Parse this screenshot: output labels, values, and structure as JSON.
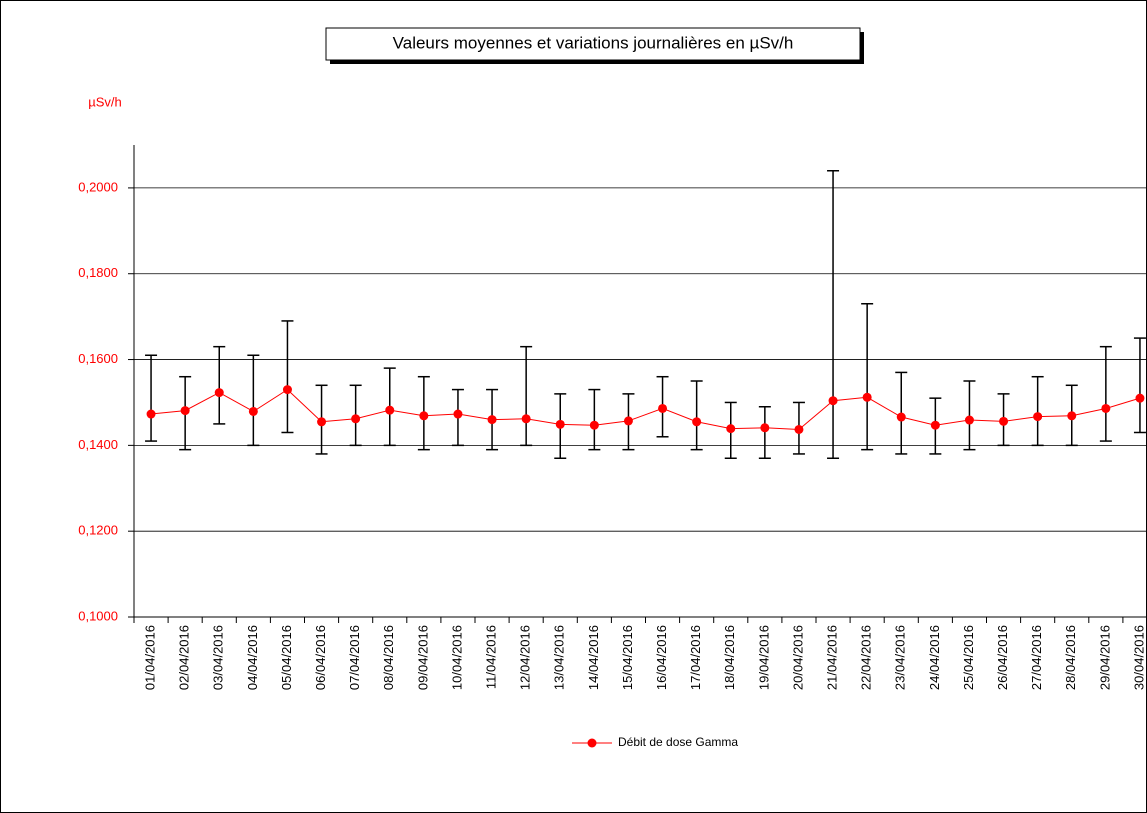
{
  "chart_data": {
    "type": "line_errorbar",
    "title": "Valeurs moyennes et variations journalières en µSv/h",
    "y_label": "µSv/h",
    "categories": [
      "01/04/2016",
      "02/04/2016",
      "03/04/2016",
      "04/04/2016",
      "05/04/2016",
      "06/04/2016",
      "07/04/2016",
      "08/04/2016",
      "09/04/2016",
      "10/04/2016",
      "11/04/2016",
      "12/04/2016",
      "13/04/2016",
      "14/04/2016",
      "15/04/2016",
      "16/04/2016",
      "17/04/2016",
      "18/04/2016",
      "19/04/2016",
      "20/04/2016",
      "21/04/2016",
      "22/04/2016",
      "23/04/2016",
      "24/04/2016",
      "25/04/2016",
      "26/04/2016",
      "27/04/2016",
      "28/04/2016",
      "29/04/2016",
      "30/04/2016"
    ],
    "series": [
      {
        "name": "Débit de dose Gamma",
        "color": "#ff0000",
        "error_color": "#000000",
        "values": [
          0.1473,
          0.1481,
          0.1523,
          0.1479,
          0.153,
          0.1455,
          0.1462,
          0.1482,
          0.1469,
          0.1473,
          0.146,
          0.1462,
          0.1449,
          0.1447,
          0.1457,
          0.1486,
          0.1455,
          0.1439,
          0.1441,
          0.1437,
          0.1504,
          0.1512,
          0.1466,
          0.1447,
          0.1459,
          0.1456,
          0.1467,
          0.1469,
          0.1486,
          0.151
        ],
        "low": [
          0.141,
          0.139,
          0.145,
          0.14,
          0.143,
          0.138,
          0.14,
          0.14,
          0.139,
          0.14,
          0.139,
          0.14,
          0.137,
          0.139,
          0.139,
          0.142,
          0.139,
          0.137,
          0.137,
          0.138,
          0.137,
          0.139,
          0.138,
          0.138,
          0.139,
          0.14,
          0.14,
          0.14,
          0.141,
          0.143
        ],
        "high": [
          0.161,
          0.156,
          0.163,
          0.161,
          0.169,
          0.154,
          0.154,
          0.158,
          0.156,
          0.153,
          0.153,
          0.163,
          0.152,
          0.153,
          0.152,
          0.156,
          0.155,
          0.15,
          0.149,
          0.15,
          0.204,
          0.173,
          0.157,
          0.151,
          0.155,
          0.152,
          0.156,
          0.154,
          0.163,
          0.165
        ]
      }
    ],
    "ylim": [
      0.1,
      0.21
    ],
    "yticks": [
      {
        "value": 0.1,
        "label": "0,1000"
      },
      {
        "value": 0.12,
        "label": "0,1200"
      },
      {
        "value": 0.14,
        "label": "0,1400"
      },
      {
        "value": 0.16,
        "label": "0,1600"
      },
      {
        "value": 0.18,
        "label": "0,1800"
      },
      {
        "value": 0.2,
        "label": "0,2000"
      }
    ],
    "tick_color": "#ff0000",
    "grid": true,
    "legend": "bottom"
  }
}
